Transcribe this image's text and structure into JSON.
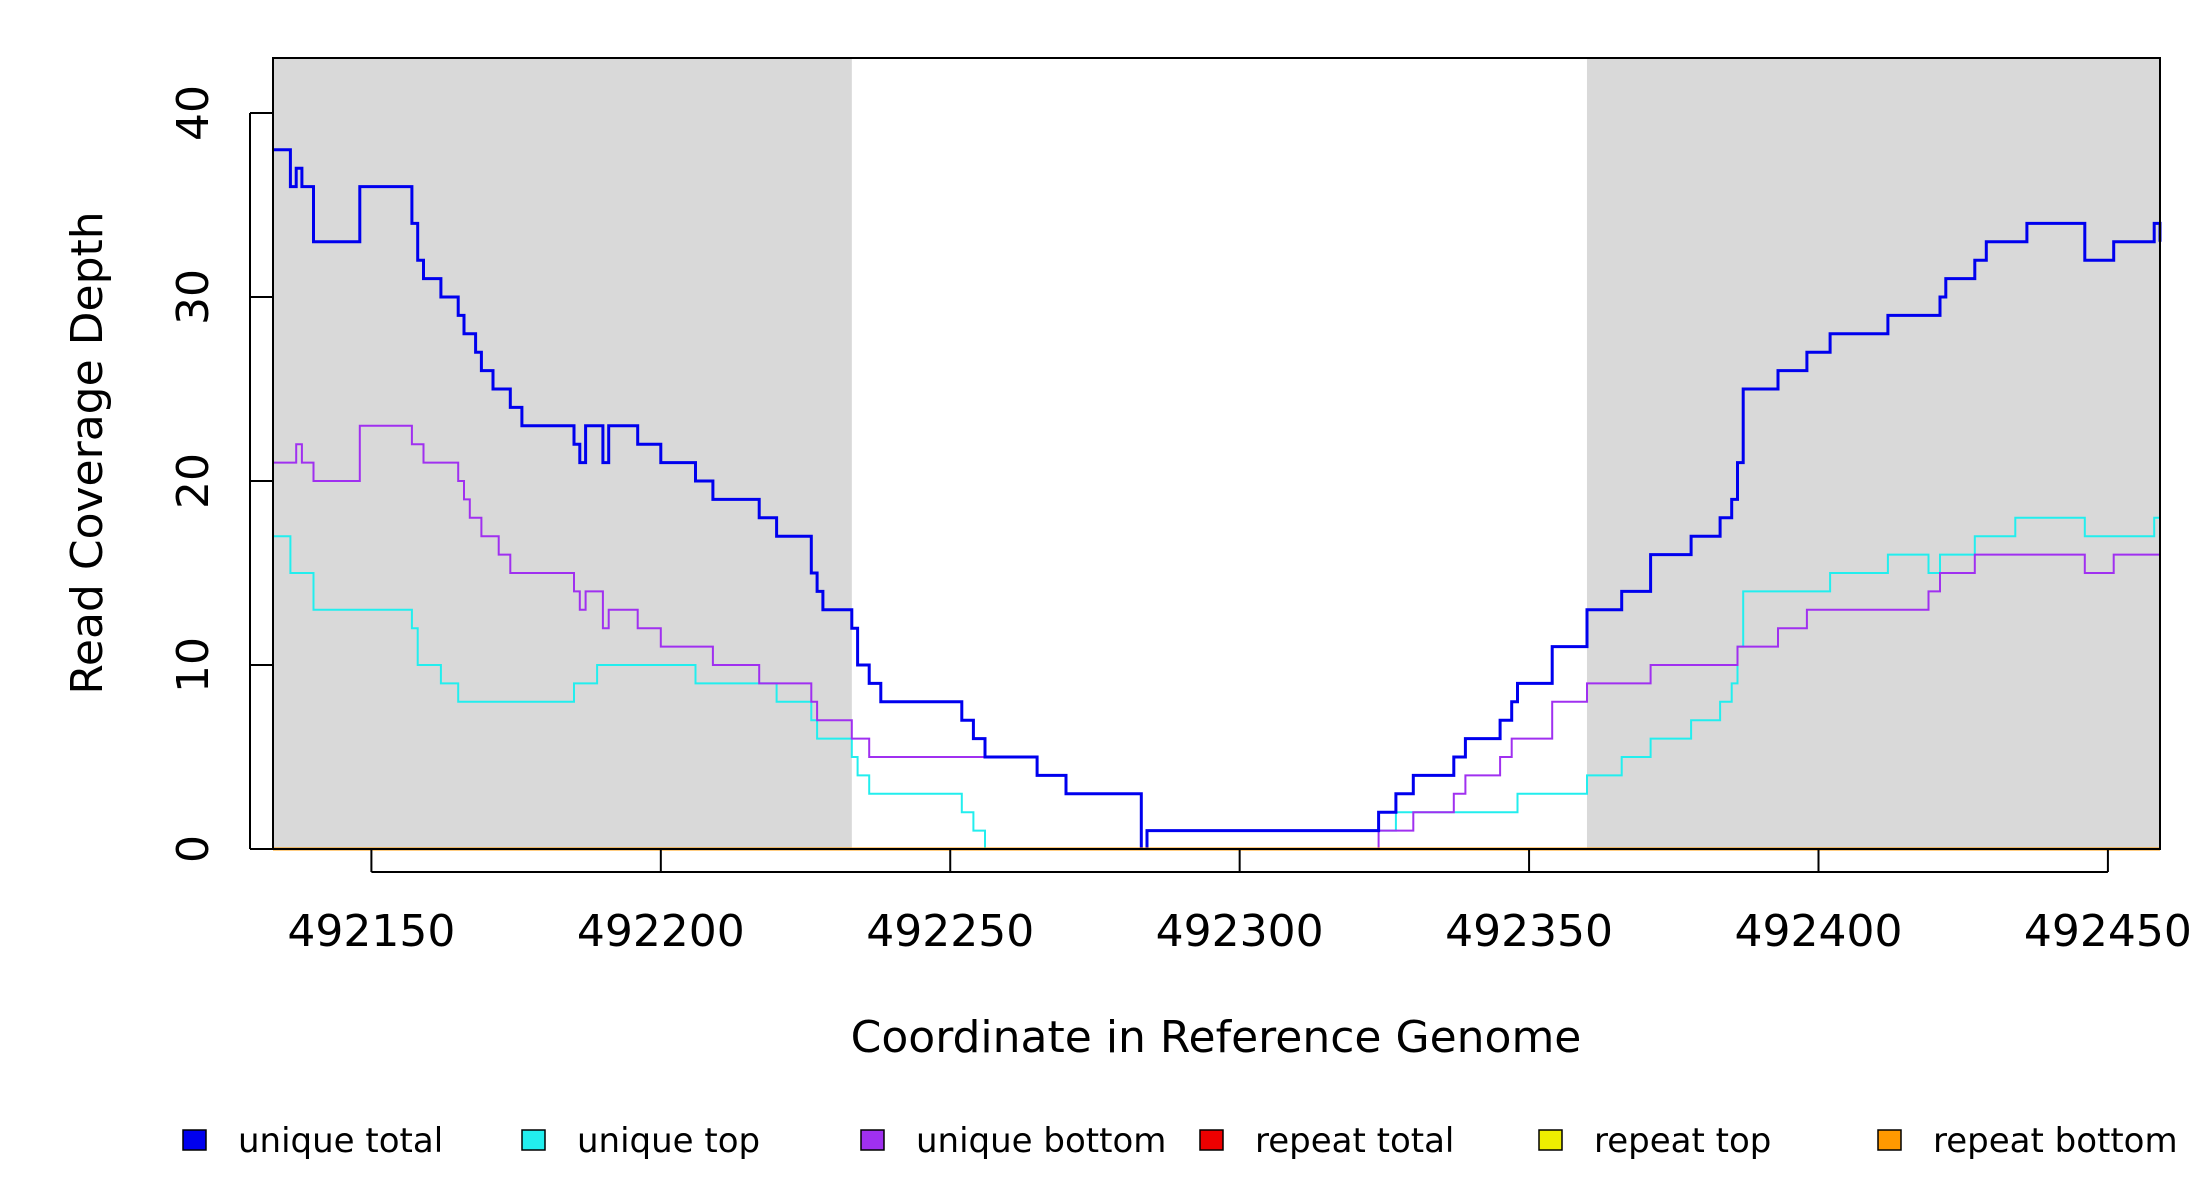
{
  "chart_data": {
    "type": "line",
    "title": "",
    "xlabel": "Coordinate in Reference Genome",
    "ylabel": "Read Coverage Depth",
    "xlim": [
      492133,
      492459
    ],
    "ylim": [
      0,
      43
    ],
    "x_ticks": [
      492150,
      492200,
      492250,
      492300,
      492350,
      492400,
      492450
    ],
    "x_tick_labels": [
      "492150",
      "492200",
      "492250",
      "492300",
      "492350",
      "492400",
      "492450"
    ],
    "y_ticks": [
      0,
      10,
      20,
      30,
      40
    ],
    "y_tick_labels": [
      "0",
      "10",
      "20",
      "30",
      "40"
    ],
    "shaded_regions": [
      [
        492133,
        492233
      ],
      [
        492360,
        492459
      ]
    ],
    "shade_color": "#d9d9d9",
    "step_style": "steps",
    "grid": false,
    "legend_position": "bottom",
    "series": [
      {
        "name": "unique total",
        "color": "#0000ee",
        "width": 3,
        "points": [
          [
            492133,
            38
          ],
          [
            492136,
            36
          ],
          [
            492137,
            37
          ],
          [
            492138,
            36
          ],
          [
            492140,
            33
          ],
          [
            492148,
            36
          ],
          [
            492157,
            34
          ],
          [
            492158,
            32
          ],
          [
            492159,
            31
          ],
          [
            492162,
            30
          ],
          [
            492165,
            29
          ],
          [
            492166,
            28
          ],
          [
            492168,
            27
          ],
          [
            492169,
            26
          ],
          [
            492171,
            25
          ],
          [
            492174,
            24
          ],
          [
            492176,
            23
          ],
          [
            492185,
            22
          ],
          [
            492186,
            21
          ],
          [
            492187,
            23
          ],
          [
            492190,
            21
          ],
          [
            492191,
            23
          ],
          [
            492196,
            22
          ],
          [
            492200,
            21
          ],
          [
            492206,
            20
          ],
          [
            492209,
            19
          ],
          [
            492217,
            18
          ],
          [
            492220,
            17
          ],
          [
            492226,
            15
          ],
          [
            492227,
            14
          ],
          [
            492228,
            13
          ],
          [
            492233,
            12
          ],
          [
            492234,
            10
          ],
          [
            492236,
            9
          ],
          [
            492238,
            8
          ],
          [
            492252,
            7
          ],
          [
            492254,
            6
          ],
          [
            492256,
            5
          ],
          [
            492265,
            4
          ],
          [
            492270,
            3
          ],
          [
            492283,
            0
          ],
          [
            492284,
            1
          ],
          [
            492324,
            2
          ],
          [
            492327,
            3
          ],
          [
            492330,
            4
          ],
          [
            492337,
            5
          ],
          [
            492339,
            6
          ],
          [
            492345,
            7
          ],
          [
            492347,
            8
          ],
          [
            492348,
            9
          ],
          [
            492354,
            11
          ],
          [
            492360,
            13
          ],
          [
            492366,
            14
          ],
          [
            492371,
            16
          ],
          [
            492378,
            17
          ],
          [
            492383,
            18
          ],
          [
            492385,
            19
          ],
          [
            492386,
            21
          ],
          [
            492387,
            25
          ],
          [
            492393,
            26
          ],
          [
            492398,
            27
          ],
          [
            492402,
            28
          ],
          [
            492412,
            29
          ],
          [
            492421,
            30
          ],
          [
            492422,
            31
          ],
          [
            492427,
            32
          ],
          [
            492429,
            33
          ],
          [
            492436,
            34
          ],
          [
            492446,
            32
          ],
          [
            492451,
            33
          ],
          [
            492458,
            34
          ],
          [
            492459,
            33
          ]
        ]
      },
      {
        "name": "unique top",
        "color": "#22eeee",
        "width": 2,
        "points": [
          [
            492133,
            17
          ],
          [
            492136,
            15
          ],
          [
            492140,
            13
          ],
          [
            492157,
            12
          ],
          [
            492158,
            10
          ],
          [
            492162,
            9
          ],
          [
            492165,
            8
          ],
          [
            492185,
            9
          ],
          [
            492189,
            10
          ],
          [
            492206,
            9
          ],
          [
            492220,
            8
          ],
          [
            492226,
            7
          ],
          [
            492227,
            6
          ],
          [
            492233,
            5
          ],
          [
            492234,
            4
          ],
          [
            492236,
            3
          ],
          [
            492252,
            2
          ],
          [
            492254,
            1
          ],
          [
            492256,
            0
          ],
          [
            492284,
            1
          ],
          [
            492324,
            1
          ],
          [
            492327,
            2
          ],
          [
            492348,
            3
          ],
          [
            492360,
            4
          ],
          [
            492366,
            5
          ],
          [
            492371,
            6
          ],
          [
            492378,
            7
          ],
          [
            492383,
            8
          ],
          [
            492385,
            9
          ],
          [
            492386,
            11
          ],
          [
            492387,
            14
          ],
          [
            492402,
            15
          ],
          [
            492412,
            16
          ],
          [
            492419,
            15
          ],
          [
            492421,
            16
          ],
          [
            492427,
            17
          ],
          [
            492434,
            18
          ],
          [
            492446,
            17
          ],
          [
            492458,
            18
          ],
          [
            492459,
            18
          ]
        ]
      },
      {
        "name": "unique bottom",
        "color": "#a030f0",
        "width": 2,
        "points": [
          [
            492133,
            21
          ],
          [
            492137,
            22
          ],
          [
            492138,
            21
          ],
          [
            492140,
            20
          ],
          [
            492148,
            23
          ],
          [
            492157,
            22
          ],
          [
            492159,
            21
          ],
          [
            492165,
            20
          ],
          [
            492166,
            19
          ],
          [
            492167,
            18
          ],
          [
            492169,
            17
          ],
          [
            492172,
            16
          ],
          [
            492174,
            15
          ],
          [
            492185,
            14
          ],
          [
            492186,
            13
          ],
          [
            492187,
            14
          ],
          [
            492190,
            12
          ],
          [
            492191,
            13
          ],
          [
            492196,
            12
          ],
          [
            492200,
            11
          ],
          [
            492209,
            10
          ],
          [
            492217,
            9
          ],
          [
            492226,
            8
          ],
          [
            492227,
            7
          ],
          [
            492233,
            6
          ],
          [
            492236,
            5
          ],
          [
            492265,
            4
          ],
          [
            492270,
            3
          ],
          [
            492283,
            0
          ],
          [
            492324,
            1
          ],
          [
            492330,
            2
          ],
          [
            492337,
            3
          ],
          [
            492339,
            4
          ],
          [
            492345,
            5
          ],
          [
            492347,
            6
          ],
          [
            492354,
            8
          ],
          [
            492360,
            9
          ],
          [
            492371,
            10
          ],
          [
            492386,
            11
          ],
          [
            492393,
            12
          ],
          [
            492398,
            13
          ],
          [
            492419,
            14
          ],
          [
            492421,
            15
          ],
          [
            492427,
            16
          ],
          [
            492446,
            15
          ],
          [
            492451,
            16
          ],
          [
            492459,
            16
          ]
        ]
      },
      {
        "name": "repeat total",
        "color": "#ee0000",
        "width": 2,
        "points": [
          [
            492133,
            0
          ],
          [
            492459,
            0
          ]
        ]
      },
      {
        "name": "repeat top",
        "color": "#eeee00",
        "width": 2,
        "points": [
          [
            492133,
            0
          ],
          [
            492459,
            0
          ]
        ]
      },
      {
        "name": "repeat bottom",
        "color": "#ff9900",
        "width": 3,
        "points": [
          [
            492133,
            0
          ],
          [
            492459,
            0
          ]
        ]
      }
    ]
  }
}
